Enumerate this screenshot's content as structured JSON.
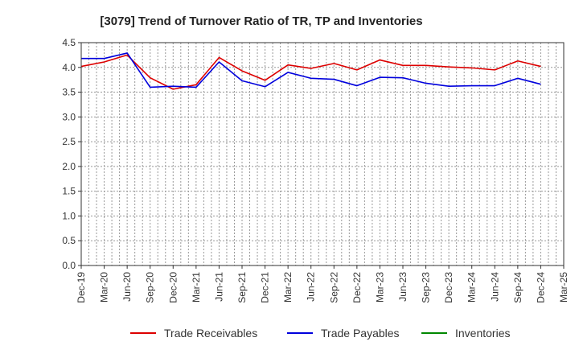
{
  "chart_data": {
    "type": "line",
    "title": "[3079]  Trend of Turnover Ratio of TR, TP and Inventories",
    "xlabel": "",
    "ylabel": "",
    "ylim": [
      0.0,
      4.5
    ],
    "yticks": [
      "0.0",
      "0.5",
      "1.0",
      "1.5",
      "2.0",
      "2.5",
      "3.0",
      "3.5",
      "4.0",
      "4.5"
    ],
    "categories": [
      "Dec-19",
      "Mar-20",
      "Jun-20",
      "Sep-20",
      "Dec-20",
      "Mar-21",
      "Jun-21",
      "Sep-21",
      "Dec-21",
      "Mar-22",
      "Jun-22",
      "Sep-22",
      "Dec-22",
      "Mar-23",
      "Jun-23",
      "Sep-23",
      "Dec-23",
      "Mar-24",
      "Jun-24",
      "Sep-24",
      "Dec-24",
      "Mar-25"
    ],
    "grid": true,
    "legend_position": "bottom",
    "series": [
      {
        "name": "Trade Receivables",
        "color": "#dd0000",
        "values": [
          4.02,
          4.11,
          4.25,
          3.79,
          3.56,
          3.65,
          4.2,
          3.93,
          3.74,
          4.05,
          3.98,
          4.08,
          3.95,
          4.15,
          4.04,
          4.04,
          4.01,
          3.99,
          3.95,
          4.13,
          4.02,
          null
        ]
      },
      {
        "name": "Trade Payables",
        "color": "#0000dd",
        "values": [
          4.18,
          4.18,
          4.29,
          3.6,
          3.62,
          3.6,
          4.11,
          3.73,
          3.61,
          3.9,
          3.78,
          3.76,
          3.63,
          3.8,
          3.79,
          3.68,
          3.62,
          3.63,
          3.63,
          3.78,
          3.66,
          null
        ]
      },
      {
        "name": "Inventories",
        "color": "#008800",
        "values": [
          null,
          null,
          null,
          null,
          null,
          null,
          null,
          null,
          null,
          null,
          null,
          null,
          null,
          null,
          null,
          null,
          null,
          null,
          null,
          null,
          null,
          null
        ]
      }
    ]
  }
}
